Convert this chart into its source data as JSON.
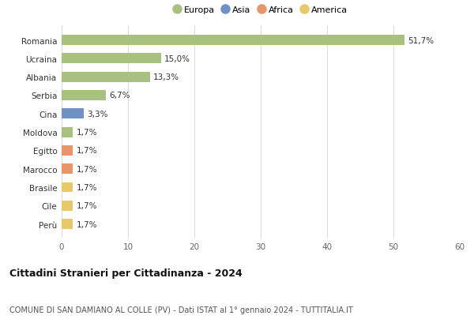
{
  "categories": [
    "Perù",
    "Cile",
    "Brasile",
    "Marocco",
    "Egitto",
    "Moldova",
    "Cina",
    "Serbia",
    "Albania",
    "Ucraina",
    "Romania"
  ],
  "values": [
    1.7,
    1.7,
    1.7,
    1.7,
    1.7,
    1.7,
    3.3,
    6.7,
    13.3,
    15.0,
    51.7
  ],
  "labels": [
    "1,7%",
    "1,7%",
    "1,7%",
    "1,7%",
    "1,7%",
    "1,7%",
    "3,3%",
    "6,7%",
    "13,3%",
    "15,0%",
    "51,7%"
  ],
  "colors": [
    "#e8c96a",
    "#e8c96a",
    "#e8c96a",
    "#e8956a",
    "#e8956a",
    "#a8c080",
    "#7090c8",
    "#a8c080",
    "#a8c080",
    "#a8c080",
    "#a8c080"
  ],
  "legend_labels": [
    "Europa",
    "Asia",
    "Africa",
    "America"
  ],
  "legend_colors": [
    "#a8c080",
    "#7090c8",
    "#e8956a",
    "#e8c96a"
  ],
  "xlim": [
    0,
    60
  ],
  "xticks": [
    0,
    10,
    20,
    30,
    40,
    50,
    60
  ],
  "title": "Cittadini Stranieri per Cittadinanza - 2024",
  "subtitle": "COMUNE DI SAN DAMIANO AL COLLE (PV) - Dati ISTAT al 1° gennaio 2024 - TUTTITALIA.IT",
  "bg_color": "#ffffff",
  "grid_color": "#dddddd",
  "bar_height": 0.55
}
